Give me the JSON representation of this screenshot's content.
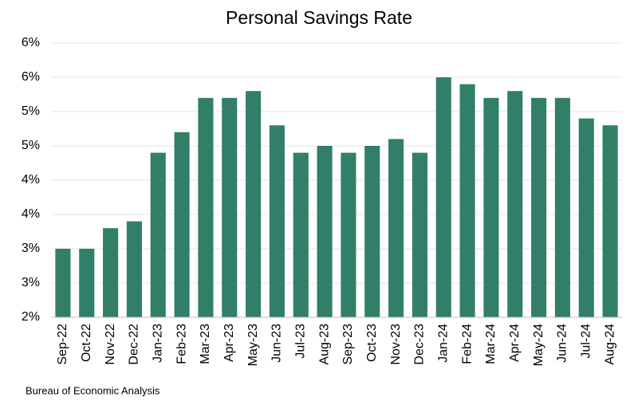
{
  "chart_data": {
    "type": "bar",
    "title": "Personal Savings Rate",
    "source": "Bureau of Economic Analysis",
    "categories": [
      "Sep-22",
      "Oct-22",
      "Nov-22",
      "Dec-22",
      "Jan-23",
      "Feb-23",
      "Mar-23",
      "Apr-23",
      "May-23",
      "Jun-23",
      "Jul-23",
      "Aug-23",
      "Sep-23",
      "Oct-23",
      "Nov-23",
      "Dec-23",
      "Jan-24",
      "Feb-24",
      "Mar-24",
      "Apr-24",
      "May-24",
      "Jun-24",
      "Jul-24",
      "Aug-24"
    ],
    "values": [
      3.0,
      3.0,
      3.3,
      3.4,
      4.4,
      4.7,
      5.2,
      5.2,
      5.3,
      4.8,
      4.4,
      4.5,
      4.4,
      4.5,
      4.6,
      4.4,
      5.5,
      5.4,
      5.2,
      5.3,
      5.2,
      5.2,
      4.9,
      4.8
    ],
    "color": "#317f68",
    "ylim": [
      2,
      6
    ],
    "yticks": [
      {
        "value": 2,
        "label": "2%"
      },
      {
        "value": 2.5,
        "label": "3%"
      },
      {
        "value": 3,
        "label": "3%"
      },
      {
        "value": 3.5,
        "label": "4%"
      },
      {
        "value": 4,
        "label": "4%"
      },
      {
        "value": 4.5,
        "label": "5%"
      },
      {
        "value": 5,
        "label": "5%"
      },
      {
        "value": 5.5,
        "label": "6%"
      },
      {
        "value": 6,
        "label": "6%"
      }
    ],
    "grid": true
  }
}
